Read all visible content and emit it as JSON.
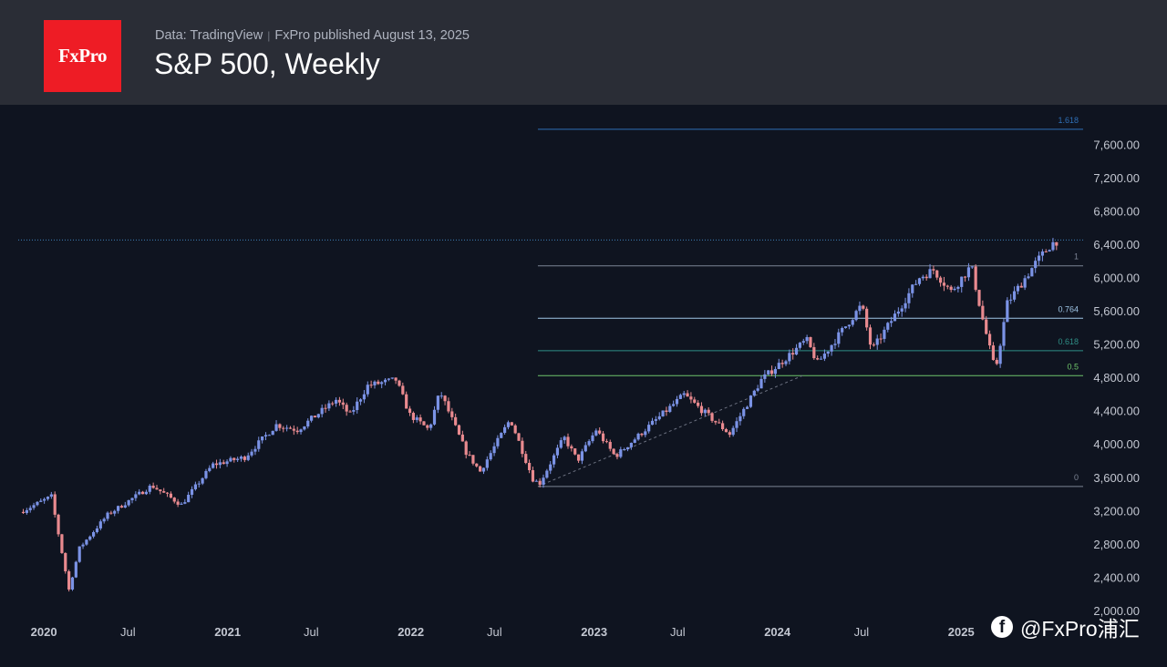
{
  "header": {
    "logo_text": "FxPro",
    "data_source": "Data: TradingView",
    "separator": "|",
    "published": "FxPro published August 13, 2025",
    "title": "S&P 500, Weekly"
  },
  "watermark": {
    "icon": "facebook-icon",
    "text": "@FxPro浦汇"
  },
  "colors": {
    "background": "#0f1420",
    "header_bg": "#2a2d36",
    "logo_red": "#ee1c25",
    "up_candle": "#7b93e6",
    "down_candle": "#e98a8f",
    "axis_text": "#c3c7d1",
    "fib_line_gray": "#7c8394",
    "fib_line_blue": "#9fc6e6",
    "fib_line_teal": "#2f8f86",
    "fib_line_green": "#6fc46a",
    "fib_line_top": "#2f6fb6"
  },
  "chart_data": {
    "type": "candlestick",
    "title": "S&P 500, Weekly",
    "grid": false,
    "ylim": [
      2000,
      7800
    ],
    "y_ticks": [
      "7,600.00",
      "7,200.00",
      "6,800.00",
      "6,400.00",
      "6,000.00",
      "5,600.00",
      "5,200.00",
      "4,800.00",
      "4,400.00",
      "4,000.00",
      "3,600.00",
      "3,200.00",
      "2,800.00",
      "2,400.00",
      "2,000.00"
    ],
    "y_tick_values": [
      7600,
      7200,
      6800,
      6400,
      6000,
      5600,
      5200,
      4800,
      4400,
      4000,
      3600,
      3200,
      2800,
      2400,
      2000
    ],
    "x_ticks": [
      "2020",
      "Jul",
      "2021",
      "Jul",
      "2022",
      "Jul",
      "2023",
      "Jul",
      "2024",
      "Jul",
      "2025"
    ],
    "x_tick_dates": [
      "2020-01-01",
      "2020-07-01",
      "2021-01-01",
      "2021-07-01",
      "2022-01-01",
      "2022-07-01",
      "2023-01-01",
      "2023-07-01",
      "2024-01-01",
      "2024-07-01",
      "2025-01-01"
    ],
    "x_range": [
      "2019-12-10",
      "2025-09-30"
    ],
    "last_price": 6450,
    "fib_retracement": {
      "start": {
        "date": "2022-10-10",
        "price": 3490
      },
      "levels": [
        {
          "label": "0",
          "price": 3490
        },
        {
          "label": "0.5",
          "price": 4820
        },
        {
          "label": "0.618",
          "price": 5120
        },
        {
          "label": "0.764",
          "price": 5510
        },
        {
          "label": "1",
          "price": 6140
        },
        {
          "label": "1.618",
          "price": 7780
        }
      ]
    },
    "anchors": [
      [
        "2019-12-20",
        3200
      ],
      [
        "2020-02-14",
        3370
      ],
      [
        "2020-03-20",
        2250
      ],
      [
        "2020-04-10",
        2750
      ],
      [
        "2020-06-05",
        3150
      ],
      [
        "2020-09-01",
        3500
      ],
      [
        "2020-10-30",
        3270
      ],
      [
        "2020-12-31",
        3750
      ],
      [
        "2021-03-05",
        3840
      ],
      [
        "2021-05-07",
        4230
      ],
      [
        "2021-06-18",
        4170
      ],
      [
        "2021-09-03",
        4530
      ],
      [
        "2021-10-01",
        4350
      ],
      [
        "2021-11-05",
        4700
      ],
      [
        "2021-12-31",
        4770
      ],
      [
        "2022-01-28",
        4350
      ],
      [
        "2022-03-07",
        4170
      ],
      [
        "2022-03-29",
        4630
      ],
      [
        "2022-05-20",
        3900
      ],
      [
        "2022-06-17",
        3670
      ],
      [
        "2022-08-16",
        4300
      ],
      [
        "2022-09-30",
        3580
      ],
      [
        "2022-10-13",
        3520
      ],
      [
        "2022-12-01",
        4080
      ],
      [
        "2022-12-28",
        3800
      ],
      [
        "2023-02-03",
        4170
      ],
      [
        "2023-03-13",
        3850
      ],
      [
        "2023-07-28",
        4590
      ],
      [
        "2023-10-27",
        4120
      ],
      [
        "2023-12-29",
        4770
      ],
      [
        "2024-03-28",
        5250
      ],
      [
        "2024-04-19",
        4970
      ],
      [
        "2024-07-16",
        5670
      ],
      [
        "2024-08-05",
        5120
      ],
      [
        "2024-11-08",
        6000
      ],
      [
        "2024-12-06",
        6090
      ],
      [
        "2025-01-10",
        5830
      ],
      [
        "2025-02-19",
        6140
      ],
      [
        "2025-03-13",
        5520
      ],
      [
        "2025-04-08",
        4870
      ],
      [
        "2025-05-02",
        5690
      ],
      [
        "2025-06-27",
        6170
      ],
      [
        "2025-07-28",
        6400
      ],
      [
        "2025-08-11",
        6450
      ]
    ]
  }
}
